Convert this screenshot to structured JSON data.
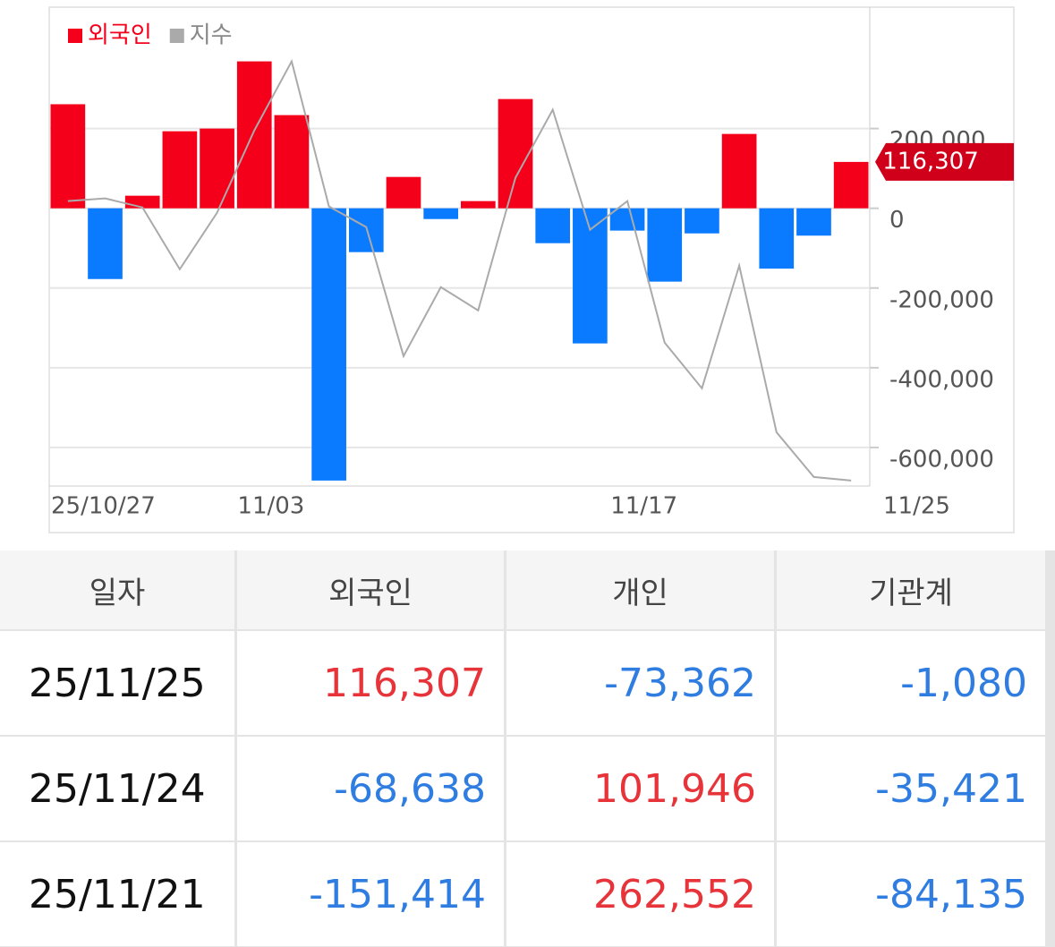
{
  "chart_data": {
    "type": "bar",
    "categories": [
      "25/10/27",
      null,
      null,
      null,
      null,
      "11/03",
      null,
      null,
      null,
      null,
      null,
      null,
      null,
      null,
      null,
      "11/17",
      null,
      null,
      null,
      null,
      null,
      "11/25"
    ],
    "series": [
      {
        "name": "외국인",
        "color": "#f5001a",
        "negative_color": "#0a7bff",
        "values": [
          261000,
          -177500,
          31500,
          193200,
          200000,
          368500,
          233700,
          -683000,
          -110000,
          78600,
          -27000,
          18000,
          274000,
          -87600,
          -339000,
          -56000,
          -184000,
          -63000,
          186500,
          -151414,
          -68638,
          116307
        ],
        "value_labels": [
          null,
          null,
          null,
          null,
          null,
          null,
          null,
          null,
          null,
          null,
          null,
          null,
          null,
          null,
          null,
          null,
          null,
          null,
          null,
          null,
          null,
          "116,307"
        ]
      },
      {
        "name": "지수",
        "color": "#aaaaaa",
        "type": "line",
        "values": [
          18000,
          24700,
          2200,
          -152800,
          -11200,
          195500,
          368500,
          4500,
          -47200,
          -370800,
          -197700,
          -256200,
          76400,
          247200,
          -53900,
          18000,
          -337000,
          -451600,
          -143800,
          -561800,
          -674100,
          -683100
        ]
      }
    ],
    "ylim": [
      -690000,
      500000
    ],
    "yticks": [
      {
        "value": 200000,
        "label": "200,000"
      },
      0,
      {
        "value": -200000,
        "label": "-200,000"
      },
      {
        "value": -400000,
        "label": "-400,000"
      },
      {
        "value": -600000,
        "label": "-600,000"
      }
    ],
    "grid": true,
    "legend": "top-left"
  },
  "table": {
    "header": [
      "일자",
      "외국인",
      "개인",
      "기관계"
    ],
    "rows": [
      [
        "25/11/25",
        "116,307",
        "-73,362",
        "-1,080"
      ],
      [
        "25/11/24",
        "-68,638",
        "101,946",
        "-35,421"
      ],
      [
        "25/11/21",
        "-151,414",
        "262,552",
        "-84,135"
      ]
    ]
  }
}
